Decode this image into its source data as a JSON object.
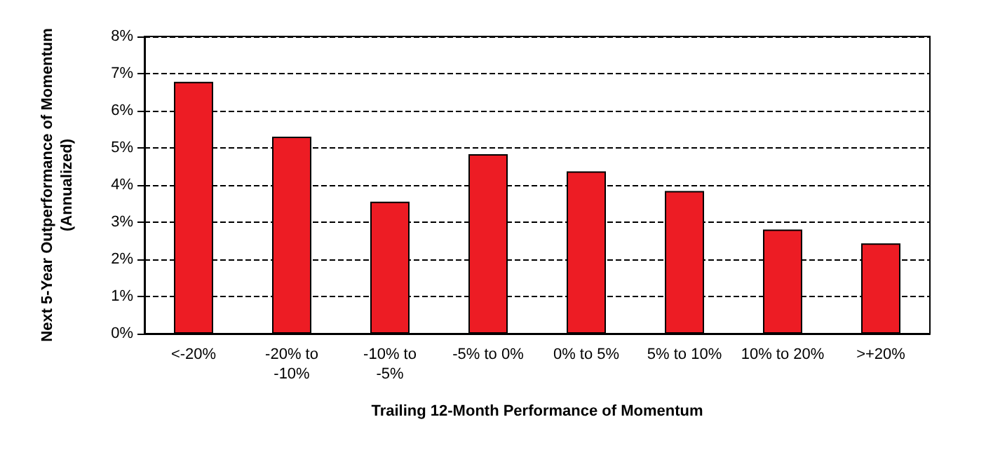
{
  "chart_data": {
    "type": "bar",
    "xlabel": "Trailing 12-Month Performance of Momentum",
    "ylabel": "Next 5-Year Outperformance of Momentum\n(Annualized)",
    "categories": [
      "<-20%",
      "-20% to\n-10%",
      "-10% to\n-5%",
      "-5% to 0%",
      "0% to 5%",
      "5% to 10%",
      "10% to 20%",
      ">+20%"
    ],
    "values": [
      6.78,
      5.3,
      3.55,
      4.83,
      4.37,
      3.84,
      2.8,
      2.43
    ],
    "color": "#ed1c24",
    "ylim": [
      0,
      8
    ],
    "yticks": [
      {
        "value": 0,
        "label": "0%"
      },
      {
        "value": 1,
        "label": "1%"
      },
      {
        "value": 2,
        "label": "2%"
      },
      {
        "value": 3,
        "label": "3%"
      },
      {
        "value": 4,
        "label": "4%"
      },
      {
        "value": 5,
        "label": "5%"
      },
      {
        "value": 6,
        "label": "6%"
      },
      {
        "value": 7,
        "label": "7%"
      },
      {
        "value": 8,
        "label": "8%"
      }
    ],
    "grid": "y",
    "line_style": "dashed"
  }
}
